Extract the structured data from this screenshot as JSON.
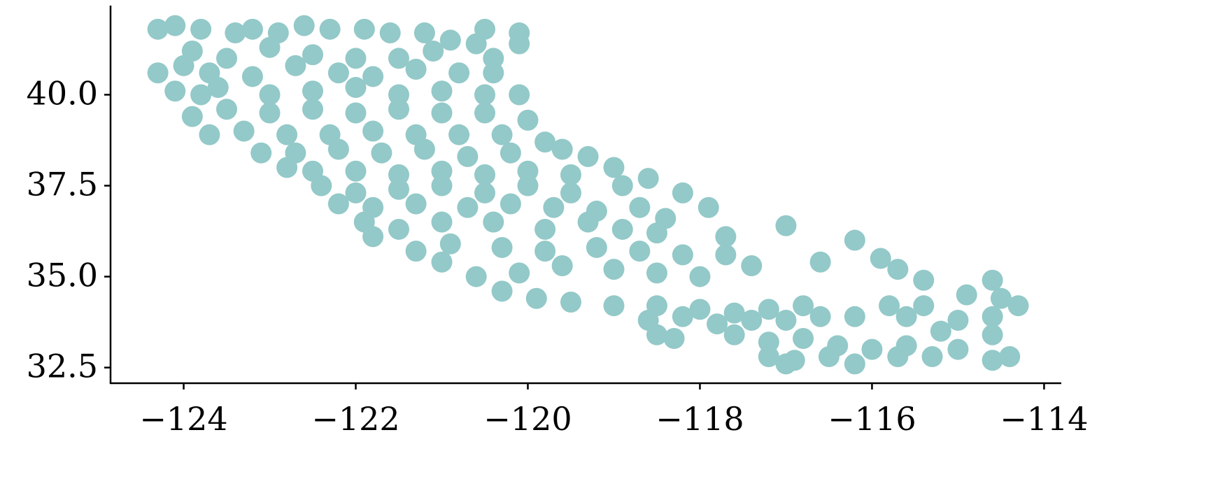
{
  "chart_data": {
    "type": "scatter",
    "color": "#93c9c8",
    "x": [
      -124.3,
      -124.1,
      -123.8,
      -123.4,
      -123.2,
      -122.9,
      -122.6,
      -122.3,
      -121.9,
      -121.6,
      -121.2,
      -120.9,
      -120.5,
      -120.1,
      -120.1,
      -123.9,
      -123.5,
      -123.0,
      -122.5,
      -122.0,
      -121.5,
      -121.1,
      -120.6,
      -120.4,
      -124.3,
      -124.0,
      -123.7,
      -123.2,
      -122.7,
      -122.2,
      -121.8,
      -121.3,
      -120.8,
      -120.4,
      -124.1,
      -123.6,
      -123.0,
      -122.5,
      -122.0,
      -121.5,
      -121.0,
      -120.5,
      -120.1,
      -123.8,
      -123.9,
      -123.5,
      -123.0,
      -122.5,
      -122.0,
      -121.5,
      -121.0,
      -120.5,
      -120.0,
      -123.7,
      -123.3,
      -122.8,
      -122.3,
      -121.8,
      -121.3,
      -120.8,
      -120.3,
      -119.8,
      -123.1,
      -122.7,
      -122.2,
      -121.7,
      -121.2,
      -120.7,
      -120.2,
      -119.6,
      -119.3,
      -122.8,
      -122.5,
      -122.0,
      -121.5,
      -121.0,
      -120.5,
      -120.0,
      -119.5,
      -119.0,
      -122.4,
      -122.0,
      -121.5,
      -121.0,
      -120.5,
      -120.0,
      -119.5,
      -118.9,
      -118.6,
      -118.2,
      -122.2,
      -121.8,
      -121.3,
      -120.7,
      -120.2,
      -119.7,
      -119.2,
      -118.7,
      -118.4,
      -117.9,
      -121.9,
      -121.5,
      -121.0,
      -120.4,
      -119.8,
      -119.3,
      -118.9,
      -118.5,
      -121.8,
      -121.3,
      -120.9,
      -120.3,
      -119.8,
      -119.2,
      -118.7,
      -118.2,
      -117.7,
      -117.7,
      -121.0,
      -120.6,
      -120.1,
      -119.6,
      -119.0,
      -118.5,
      -118.0,
      -117.4,
      -117.0,
      -120.3,
      -119.9,
      -119.5,
      -119.0,
      -118.5,
      -118.0,
      -117.6,
      -117.2,
      -116.8,
      -116.6,
      -116.2,
      -115.9,
      -115.7,
      -115.4,
      -118.6,
      -118.2,
      -117.8,
      -117.4,
      -117.0,
      -116.6,
      -116.2,
      -115.8,
      -115.4,
      -115.6,
      -118.5,
      -118.3,
      -117.6,
      -117.2,
      -116.8,
      -116.4,
      -116.0,
      -115.6,
      -115.2,
      -117.2,
      -116.9,
      -116.5,
      -116.2,
      -115.7,
      -115.3,
      -115.0,
      -115.0,
      -114.9,
      -114.6,
      -114.5,
      -114.3,
      -114.6,
      -114.6,
      -114.6,
      -114.4,
      -117.0
    ],
    "y": [
      41.8,
      41.9,
      41.8,
      41.7,
      41.8,
      41.7,
      41.9,
      41.8,
      41.8,
      41.7,
      41.7,
      41.5,
      41.8,
      41.7,
      41.4,
      41.2,
      41.0,
      41.3,
      41.1,
      41.0,
      41.0,
      41.2,
      41.4,
      41.0,
      40.6,
      40.8,
      40.6,
      40.5,
      40.8,
      40.6,
      40.5,
      40.7,
      40.6,
      40.6,
      40.1,
      40.2,
      40.0,
      40.1,
      40.2,
      40.0,
      40.1,
      40.0,
      40.0,
      40.0,
      39.4,
      39.6,
      39.5,
      39.6,
      39.5,
      39.6,
      39.5,
      39.5,
      39.3,
      38.9,
      39.0,
      38.9,
      38.9,
      39.0,
      38.9,
      38.9,
      38.9,
      38.7,
      38.4,
      38.4,
      38.5,
      38.4,
      38.5,
      38.3,
      38.4,
      38.5,
      38.3,
      38.0,
      37.9,
      37.9,
      37.8,
      37.9,
      37.8,
      37.9,
      37.8,
      38.0,
      37.5,
      37.3,
      37.4,
      37.5,
      37.3,
      37.5,
      37.3,
      37.5,
      37.7,
      37.3,
      37.0,
      36.9,
      37.0,
      36.9,
      37.0,
      36.9,
      36.8,
      36.9,
      36.6,
      36.9,
      36.5,
      36.3,
      36.5,
      36.5,
      36.3,
      36.5,
      36.3,
      36.2,
      36.1,
      35.7,
      35.9,
      35.8,
      35.7,
      35.8,
      35.7,
      35.6,
      35.6,
      36.1,
      35.4,
      35.0,
      35.1,
      35.3,
      35.2,
      35.1,
      35.0,
      35.3,
      36.4,
      34.6,
      34.4,
      34.3,
      34.2,
      34.2,
      34.1,
      34.0,
      34.1,
      34.2,
      35.4,
      36.0,
      35.5,
      35.2,
      34.9,
      33.8,
      33.9,
      33.7,
      33.8,
      33.8,
      33.9,
      33.9,
      34.2,
      34.2,
      33.9,
      33.4,
      33.3,
      33.4,
      33.2,
      33.3,
      33.1,
      33.0,
      33.1,
      33.5,
      32.8,
      32.7,
      32.8,
      32.6,
      32.8,
      32.8,
      33.8,
      33.0,
      34.5,
      34.9,
      34.4,
      34.2,
      33.9,
      33.4,
      32.7,
      32.8,
      32.6
    ],
    "xlim": [
      -124.85,
      -113.8
    ],
    "ylim": [
      32.07,
      42.45
    ],
    "xticks": [
      {
        "value": -124,
        "label": "−124"
      },
      {
        "value": -122,
        "label": "−122"
      },
      {
        "value": -120,
        "label": "−120"
      },
      {
        "value": -118,
        "label": "−118"
      },
      {
        "value": -116,
        "label": "−116"
      },
      {
        "value": -114,
        "label": "−114"
      }
    ],
    "yticks": [
      32.5,
      {
        "value": 35,
        "label": "35.0"
      },
      37.5,
      {
        "value": 40,
        "label": "40.0"
      }
    ]
  }
}
